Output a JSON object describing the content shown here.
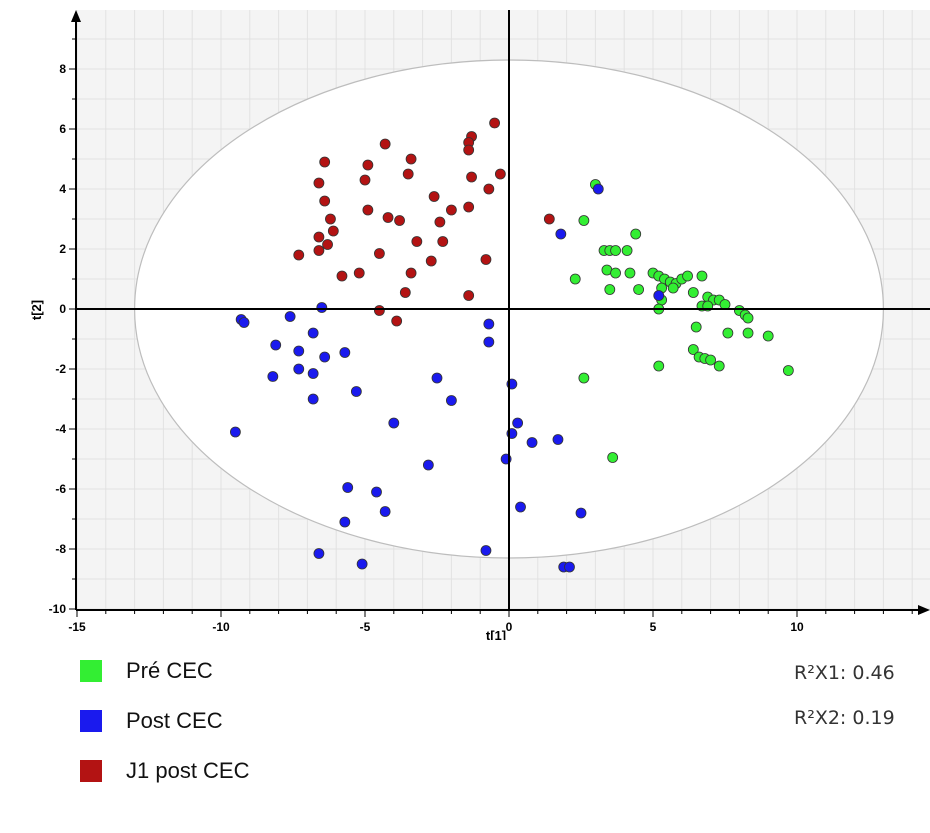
{
  "chart_data": {
    "type": "scatter",
    "xlabel": "t[1]",
    "ylabel": "t[2]",
    "xlim": [
      -15,
      15
    ],
    "ylim": [
      -10,
      10
    ],
    "x_ticks": [
      -15,
      -10,
      -5,
      0,
      5,
      10
    ],
    "y_ticks": [
      -10,
      -8,
      -6,
      -4,
      -2,
      0,
      2,
      4,
      6,
      8
    ],
    "grid": true,
    "ellipse": {
      "center": [
        0,
        0
      ],
      "rx": 13,
      "ry": 8.3
    },
    "series": [
      {
        "name": "Pré CEC",
        "color": "#33ee33",
        "points": [
          [
            3.0,
            4.15
          ],
          [
            2.6,
            2.95
          ],
          [
            4.4,
            2.5
          ],
          [
            2.3,
            1.0
          ],
          [
            3.3,
            1.95
          ],
          [
            3.5,
            1.95
          ],
          [
            3.7,
            1.95
          ],
          [
            4.1,
            1.95
          ],
          [
            3.4,
            1.3
          ],
          [
            3.7,
            1.2
          ],
          [
            4.2,
            1.2
          ],
          [
            3.5,
            0.65
          ],
          [
            4.5,
            0.65
          ],
          [
            5.0,
            1.2
          ],
          [
            5.2,
            1.1
          ],
          [
            5.4,
            1.0
          ],
          [
            5.6,
            0.9
          ],
          [
            5.8,
            0.85
          ],
          [
            6.0,
            1.0
          ],
          [
            6.2,
            1.1
          ],
          [
            6.7,
            1.1
          ],
          [
            5.3,
            0.7
          ],
          [
            5.7,
            0.7
          ],
          [
            6.4,
            0.55
          ],
          [
            5.3,
            0.3
          ],
          [
            6.9,
            0.4
          ],
          [
            7.1,
            0.3
          ],
          [
            7.3,
            0.3
          ],
          [
            6.7,
            0.1
          ],
          [
            6.9,
            0.1
          ],
          [
            7.5,
            0.15
          ],
          [
            8.0,
            -0.05
          ],
          [
            8.2,
            -0.2
          ],
          [
            8.3,
            -0.3
          ],
          [
            5.2,
            0
          ],
          [
            6.5,
            -0.6
          ],
          [
            7.6,
            -0.8
          ],
          [
            8.3,
            -0.8
          ],
          [
            9.0,
            -0.9
          ],
          [
            6.4,
            -1.35
          ],
          [
            6.6,
            -1.6
          ],
          [
            6.8,
            -1.65
          ],
          [
            7.0,
            -1.7
          ],
          [
            7.3,
            -1.9
          ],
          [
            5.2,
            -1.9
          ],
          [
            9.7,
            -2.05
          ],
          [
            2.6,
            -2.3
          ],
          [
            3.6,
            -4.95
          ]
        ]
      },
      {
        "name": "Post CEC",
        "color": "#1a1aee",
        "points": [
          [
            3.1,
            4.0
          ],
          [
            1.8,
            2.5
          ],
          [
            5.2,
            0.45
          ],
          [
            -6.5,
            0.05
          ],
          [
            -7.6,
            -0.25
          ],
          [
            -9.3,
            -0.35
          ],
          [
            -9.2,
            -0.45
          ],
          [
            -6.8,
            -0.8
          ],
          [
            -8.1,
            -1.2
          ],
          [
            -7.3,
            -1.4
          ],
          [
            -6.4,
            -1.6
          ],
          [
            -5.7,
            -1.45
          ],
          [
            -7.3,
            -2.0
          ],
          [
            -6.8,
            -2.15
          ],
          [
            -8.2,
            -2.25
          ],
          [
            -5.3,
            -2.75
          ],
          [
            -6.8,
            -3.0
          ],
          [
            -9.5,
            -4.1
          ],
          [
            -2.5,
            -2.3
          ],
          [
            -2.0,
            -3.05
          ],
          [
            -4.0,
            -3.8
          ],
          [
            -0.7,
            -0.5
          ],
          [
            -0.7,
            -1.1
          ],
          [
            0.1,
            -2.5
          ],
          [
            0.3,
            -3.8
          ],
          [
            0.1,
            -4.15
          ],
          [
            0.8,
            -4.45
          ],
          [
            1.7,
            -4.35
          ],
          [
            -0.1,
            -5.0
          ],
          [
            -2.8,
            -5.2
          ],
          [
            -5.6,
            -5.95
          ],
          [
            -4.6,
            -6.1
          ],
          [
            -4.3,
            -6.75
          ],
          [
            -5.7,
            -7.1
          ],
          [
            0.4,
            -6.6
          ],
          [
            2.5,
            -6.8
          ],
          [
            -6.6,
            -8.15
          ],
          [
            -5.1,
            -8.5
          ],
          [
            -0.8,
            -8.05
          ],
          [
            1.9,
            -8.6
          ],
          [
            2.1,
            -8.6
          ]
        ]
      },
      {
        "name": "J1 post CEC",
        "color": "#b31313",
        "points": [
          [
            -0.5,
            6.2
          ],
          [
            -1.3,
            5.75
          ],
          [
            -1.4,
            5.55
          ],
          [
            -1.4,
            5.3
          ],
          [
            -4.3,
            5.5
          ],
          [
            -3.4,
            5.0
          ],
          [
            -6.4,
            4.9
          ],
          [
            -4.9,
            4.8
          ],
          [
            -3.5,
            4.5
          ],
          [
            -5.0,
            4.3
          ],
          [
            -6.6,
            4.2
          ],
          [
            -1.3,
            4.4
          ],
          [
            -0.3,
            4.5
          ],
          [
            -0.7,
            4.0
          ],
          [
            -2.6,
            3.75
          ],
          [
            -6.4,
            3.6
          ],
          [
            -4.9,
            3.3
          ],
          [
            -4.2,
            3.05
          ],
          [
            -3.8,
            2.95
          ],
          [
            -1.4,
            3.4
          ],
          [
            -2.0,
            3.3
          ],
          [
            -2.4,
            2.9
          ],
          [
            -6.2,
            3.0
          ],
          [
            -6.1,
            2.6
          ],
          [
            -6.6,
            2.4
          ],
          [
            -6.3,
            2.15
          ],
          [
            -6.6,
            1.95
          ],
          [
            -7.3,
            1.8
          ],
          [
            -3.2,
            2.25
          ],
          [
            -2.3,
            2.25
          ],
          [
            1.4,
            3.0
          ],
          [
            -4.5,
            1.85
          ],
          [
            -2.7,
            1.6
          ],
          [
            -0.8,
            1.65
          ],
          [
            -5.8,
            1.1
          ],
          [
            -5.2,
            1.2
          ],
          [
            -3.4,
            1.2
          ],
          [
            -3.6,
            0.55
          ],
          [
            -1.4,
            0.45
          ],
          [
            -4.5,
            -0.05
          ],
          [
            -3.9,
            -0.4
          ]
        ]
      }
    ],
    "annotations": [
      "R²X1: 0.46",
      "R²X2: 0.19"
    ]
  },
  "legend": [
    {
      "label": "Pré CEC",
      "color": "#33ee33"
    },
    {
      "label": "Post CEC",
      "color": "#1a1aee"
    },
    {
      "label": "J1 post CEC",
      "color": "#b31313"
    }
  ],
  "r2": {
    "x1": "R²X1: 0.46",
    "x2": "R²X2: 0.19"
  }
}
